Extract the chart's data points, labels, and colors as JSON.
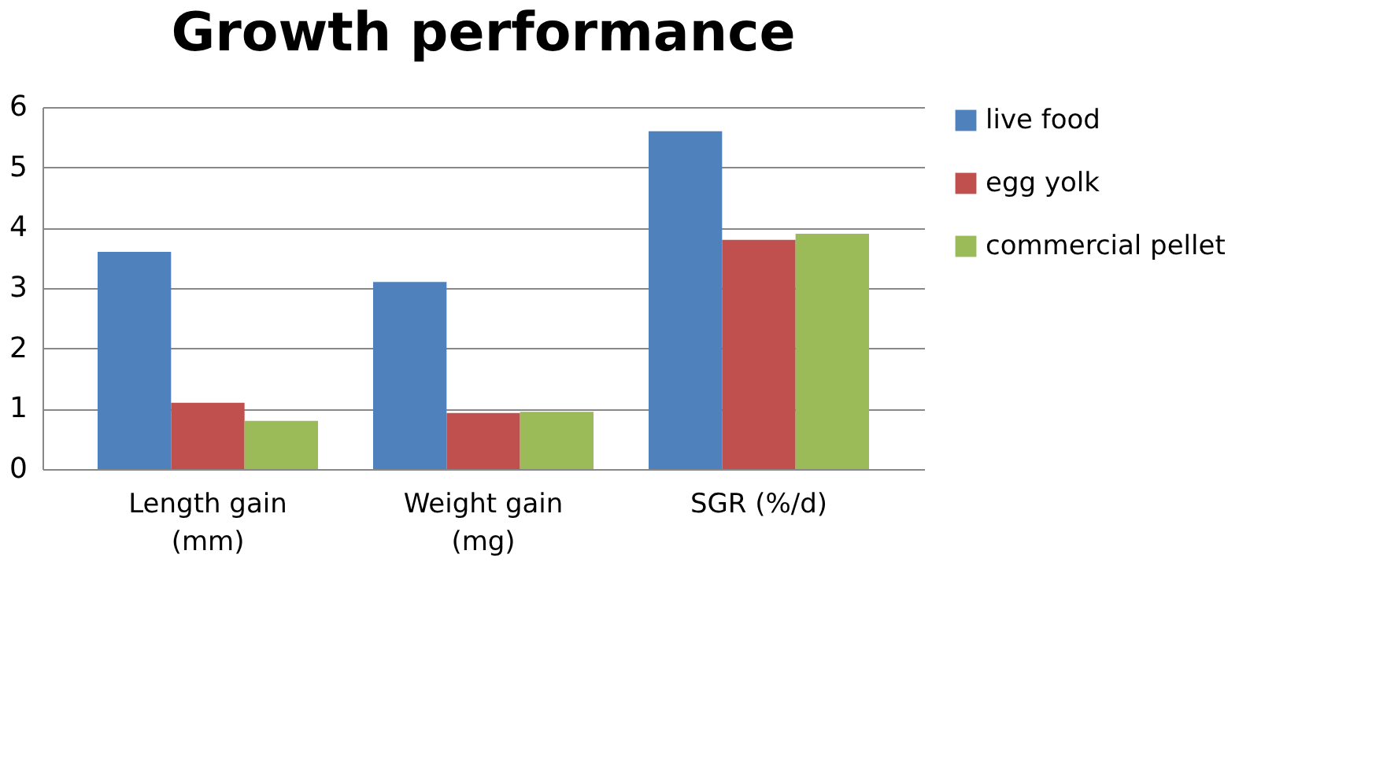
{
  "chart_data": {
    "type": "bar",
    "title": "Growth performance",
    "categories": [
      "Length gain (mm)",
      "Weight gain (mg)",
      "SGR (%/d)"
    ],
    "series": [
      {
        "name": "live food",
        "color": "#4f81bd",
        "values": [
          3.6,
          3.1,
          5.6
        ]
      },
      {
        "name": "egg yolk",
        "color": "#c0504d",
        "values": [
          1.1,
          0.93,
          3.8
        ]
      },
      {
        "name": "commercial pellet",
        "color": "#9bbb59",
        "values": [
          0.8,
          0.95,
          3.9
        ]
      }
    ],
    "ylim": [
      0,
      6
    ],
    "yticks": [
      0,
      1,
      2,
      3,
      4,
      5,
      6
    ],
    "grid": "y",
    "legend": "right"
  }
}
